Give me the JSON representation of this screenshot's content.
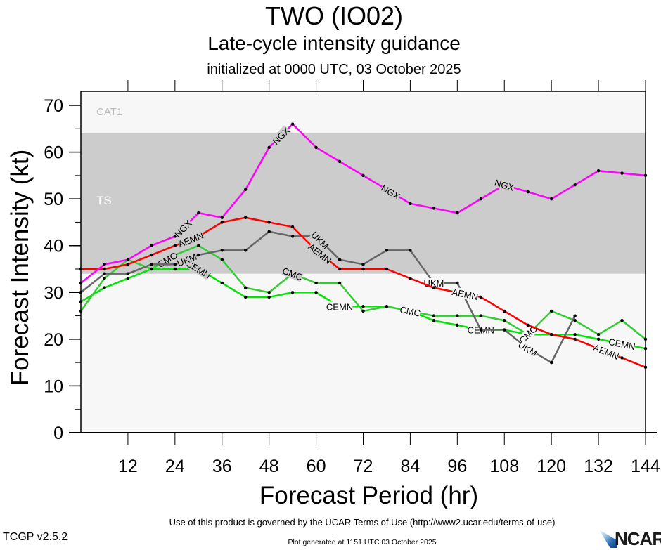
{
  "header": {
    "title": "TWO (IO02)",
    "subtitle": "Late-cycle intensity guidance",
    "init_line": "initialized at 0000 UTC, 03 October 2025"
  },
  "footer": {
    "terms": "Use of this product is governed by the UCAR Terms of Use (http://www2.ucar.edu/terms-of-use)",
    "generated": "Plot generated at 1151 UTC   03 October 2025",
    "version": "TCGP v2.5.2",
    "logo_text": "NCAR"
  },
  "chart_data": {
    "type": "line",
    "title": "TWO (IO02)",
    "subtitle": "Late-cycle intensity guidance",
    "xlabel": "Forecast Period (hr)",
    "ylabel": "Forecast Intensity (kt)",
    "xlim": [
      0,
      144
    ],
    "ylim": [
      0,
      70
    ],
    "xticks": [
      12,
      24,
      36,
      48,
      60,
      72,
      84,
      96,
      108,
      120,
      132,
      144
    ],
    "yticks": [
      0,
      10,
      20,
      30,
      40,
      50,
      60,
      70
    ],
    "grid": false,
    "bands": [
      {
        "label": "TS",
        "from": 34,
        "to": 64,
        "color": "#cccccc",
        "label_color": "#ffffff"
      },
      {
        "label": "CAT1",
        "from": 64,
        "to": 70,
        "color": "#f7f7f7",
        "label_color": "#bbbbbb"
      }
    ],
    "below_band_color": "#f7f7f7",
    "x": [
      0,
      6,
      12,
      18,
      24,
      30,
      36,
      42,
      48,
      54,
      60,
      66,
      72,
      78,
      84,
      90,
      96,
      102,
      108,
      114,
      120,
      126,
      132,
      138,
      144
    ],
    "series": [
      {
        "name": "CEMN",
        "color": "#00e600",
        "values": [
          28,
          31,
          33,
          35,
          35,
          35,
          32,
          29,
          29,
          30,
          30,
          27,
          27,
          27,
          26,
          24,
          23,
          22,
          22,
          21,
          21,
          21,
          20,
          19,
          18
        ],
        "label_at": [
          30,
          66,
          102,
          138
        ]
      },
      {
        "name": "CMC",
        "color": "#33cc33",
        "values": [
          26,
          33,
          37,
          35,
          38,
          40,
          37,
          31,
          30,
          34,
          32,
          32,
          26,
          27,
          26,
          25,
          25,
          25,
          24,
          21,
          26,
          24,
          21,
          24,
          20
        ],
        "label_at": [
          22,
          54,
          84,
          114
        ]
      },
      {
        "name": "UKM",
        "color": "#666666",
        "values": [
          30,
          34,
          34,
          36,
          36,
          38,
          39,
          39,
          43,
          42,
          42,
          37,
          36,
          39,
          39,
          32,
          32,
          22,
          22,
          18,
          15,
          25,
          null,
          null,
          null
        ],
        "label_at": [
          27,
          61,
          90,
          114
        ]
      },
      {
        "name": "AEMN",
        "color": "#ff0000",
        "values": [
          35,
          35,
          36,
          38,
          40,
          42,
          45,
          46,
          45,
          44,
          39,
          35,
          35,
          35,
          33,
          31,
          30,
          29,
          26,
          23,
          21,
          20,
          18,
          16,
          14
        ],
        "label_at": [
          28,
          61,
          98,
          134
        ]
      },
      {
        "name": "NGX",
        "color": "#ff00ff",
        "values": [
          32,
          36,
          37,
          40,
          42,
          47,
          46,
          52,
          61,
          66,
          61,
          58,
          55,
          52,
          49,
          48,
          47,
          50,
          53,
          51.5,
          50,
          53,
          56,
          55.5,
          55
        ],
        "label_at": [
          26,
          51,
          79,
          108
        ]
      }
    ]
  }
}
